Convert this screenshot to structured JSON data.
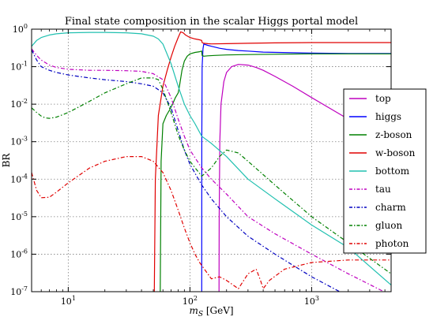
{
  "chart_data": {
    "type": "line",
    "title": "Final state composition in the scalar Higgs portal model",
    "xlabel": "m_S [GeV]",
    "ylabel": "BR",
    "xscale": "log",
    "yscale": "log",
    "xlim": [
      5,
      4500
    ],
    "ylim": [
      1e-07,
      1
    ],
    "x_ticks": [
      {
        "value": 10,
        "label": "10",
        "sup": "1"
      },
      {
        "value": 100,
        "label": "10",
        "sup": "2"
      },
      {
        "value": 1000,
        "label": "10",
        "sup": "3"
      }
    ],
    "y_ticks": [
      {
        "value": 1,
        "label": "10",
        "sup": "0"
      },
      {
        "value": 0.1,
        "label": "10",
        "sup": "-1"
      },
      {
        "value": 0.01,
        "label": "10",
        "sup": "-2"
      },
      {
        "value": 0.001,
        "label": "10",
        "sup": "-3"
      },
      {
        "value": 0.0001,
        "label": "10",
        "sup": "-4"
      },
      {
        "value": 1e-05,
        "label": "10",
        "sup": "-5"
      },
      {
        "value": 1e-06,
        "label": "10",
        "sup": "-6"
      },
      {
        "value": 1e-07,
        "label": "10",
        "sup": "-7"
      }
    ],
    "grid": true,
    "legend_position": "right",
    "series": [
      {
        "name": "top",
        "color": "#bf00bf",
        "dash": "solid",
        "x": [
          173.5,
          174,
          176,
          180,
          190,
          200,
          220,
          250,
          300,
          350,
          400,
          500,
          700,
          1000,
          2000,
          4500
        ],
        "y": [
          1e-07,
          1e-05,
          0.001,
          0.01,
          0.04,
          0.07,
          0.1,
          0.115,
          0.11,
          0.095,
          0.08,
          0.055,
          0.03,
          0.015,
          0.004,
          0.0012
        ]
      },
      {
        "name": "higgs",
        "color": "#0000ff",
        "dash": "solid",
        "x": [
          125,
          125.2,
          126,
          128,
          130,
          140,
          150,
          175,
          200,
          250,
          300,
          400,
          700,
          1000,
          2000,
          4500
        ],
        "y": [
          1e-07,
          0.001,
          0.1,
          0.3,
          0.4,
          0.37,
          0.35,
          0.31,
          0.29,
          0.27,
          0.26,
          0.245,
          0.235,
          0.23,
          0.225,
          0.225
        ]
      },
      {
        "name": "z-boson",
        "color": "#008000",
        "dash": "solid",
        "x": [
          57,
          58,
          60,
          64,
          68,
          72,
          76,
          80,
          82,
          86,
          90,
          95,
          100,
          110,
          120,
          125,
          126,
          130,
          140,
          160,
          200,
          300,
          500,
          1000,
          2000,
          4500
        ],
        "y": [
          1e-07,
          0.0003,
          0.003,
          0.005,
          0.007,
          0.01,
          0.015,
          0.02,
          0.03,
          0.08,
          0.14,
          0.19,
          0.22,
          0.24,
          0.25,
          0.26,
          0.2,
          0.19,
          0.195,
          0.2,
          0.205,
          0.21,
          0.215,
          0.22,
          0.22,
          0.22
        ]
      },
      {
        "name": "w-boson",
        "color": "#e00000",
        "dash": "solid",
        "x": [
          51,
          52,
          55,
          60,
          65,
          70,
          75,
          80,
          84,
          88,
          92,
          100,
          110,
          120,
          125,
          126,
          130,
          140,
          150,
          200,
          300,
          500,
          1000,
          2000,
          4500
        ],
        "y": [
          1e-07,
          0.0001,
          0.005,
          0.03,
          0.08,
          0.18,
          0.35,
          0.6,
          0.85,
          0.8,
          0.7,
          0.6,
          0.55,
          0.52,
          0.5,
          0.44,
          0.42,
          0.41,
          0.405,
          0.41,
          0.42,
          0.43,
          0.44,
          0.44,
          0.44
        ]
      },
      {
        "name": "bottom",
        "color": "#20c0b0",
        "dash": "solid",
        "x": [
          5,
          5.5,
          6,
          7,
          8,
          10,
          15,
          20,
          30,
          40,
          50,
          55,
          60,
          70,
          80,
          90,
          100,
          110,
          125,
          150,
          200,
          300,
          500,
          1000,
          2000,
          4500
        ],
        "y": [
          0.35,
          0.5,
          0.6,
          0.7,
          0.75,
          0.8,
          0.82,
          0.82,
          0.8,
          0.75,
          0.65,
          0.55,
          0.4,
          0.12,
          0.03,
          0.01,
          0.005,
          0.003,
          0.0014,
          0.0009,
          0.0004,
          0.0001,
          3e-05,
          6e-06,
          1.5e-06,
          1.5e-07
        ]
      },
      {
        "name": "tau",
        "color": "#bf00bf",
        "dash": "dashdot",
        "x": [
          5,
          5.5,
          6,
          7,
          8,
          10,
          15,
          20,
          30,
          40,
          50,
          60,
          70,
          80,
          90,
          100,
          125,
          150,
          200,
          300,
          500,
          1000,
          2000,
          4500
        ],
        "y": [
          0.3,
          0.2,
          0.15,
          0.11,
          0.095,
          0.085,
          0.08,
          0.08,
          0.078,
          0.075,
          0.065,
          0.045,
          0.015,
          0.004,
          0.0014,
          0.0006,
          0.0002,
          0.0001,
          4e-05,
          1e-05,
          3.5e-06,
          1e-06,
          3e-07,
          8e-08
        ]
      },
      {
        "name": "charm",
        "color": "#0000c0",
        "dash": "dashdot",
        "x": [
          5,
          5.5,
          6,
          7,
          8,
          10,
          15,
          20,
          30,
          40,
          50,
          60,
          70,
          80,
          90,
          100,
          125,
          150,
          200,
          300,
          500,
          1000,
          1700
        ],
        "y": [
          0.28,
          0.15,
          0.1,
          0.08,
          0.07,
          0.06,
          0.05,
          0.045,
          0.04,
          0.035,
          0.03,
          0.02,
          0.008,
          0.002,
          0.0006,
          0.00025,
          7e-05,
          3e-05,
          1e-05,
          3e-06,
          1e-06,
          2.5e-07,
          1e-07
        ]
      },
      {
        "name": "gluon",
        "color": "#008000",
        "dash": "dashdot",
        "x": [
          5,
          5.5,
          6,
          6.5,
          7,
          8,
          10,
          15,
          20,
          30,
          40,
          50,
          55,
          60,
          70,
          80,
          90,
          100,
          125,
          150,
          175,
          200,
          250,
          300,
          500,
          1000,
          2000,
          4500
        ],
        "y": [
          0.008,
          0.006,
          0.0048,
          0.0043,
          0.0042,
          0.0045,
          0.006,
          0.012,
          0.02,
          0.035,
          0.05,
          0.05,
          0.045,
          0.025,
          0.006,
          0.0015,
          0.0006,
          0.0003,
          0.00012,
          0.0002,
          0.0004,
          0.0006,
          0.0005,
          0.0003,
          7e-05,
          1e-05,
          2e-06,
          3e-07
        ]
      },
      {
        "name": "photon",
        "color": "#e00000",
        "dash": "dashdot",
        "x": [
          5,
          5.5,
          6,
          7,
          8,
          10,
          15,
          20,
          30,
          40,
          50,
          60,
          70,
          80,
          90,
          100,
          110,
          120,
          125,
          140,
          150,
          175,
          200,
          250,
          300,
          350,
          380,
          400,
          450,
          600,
          1000,
          2000,
          4500
        ],
        "y": [
          0.00015,
          5e-05,
          3.2e-05,
          3.3e-05,
          4.5e-05,
          8e-05,
          0.0002,
          0.0003,
          0.0004,
          0.0004,
          0.0003,
          0.00015,
          5e-05,
          1.5e-05,
          5e-06,
          2e-06,
          1e-06,
          6e-07,
          5e-07,
          3e-07,
          2.2e-07,
          2.5e-07,
          2e-07,
          1.2e-07,
          3e-07,
          4e-07,
          2e-07,
          1.2e-07,
          2e-07,
          4e-07,
          6e-07,
          7e-07,
          7e-07
        ]
      }
    ]
  }
}
